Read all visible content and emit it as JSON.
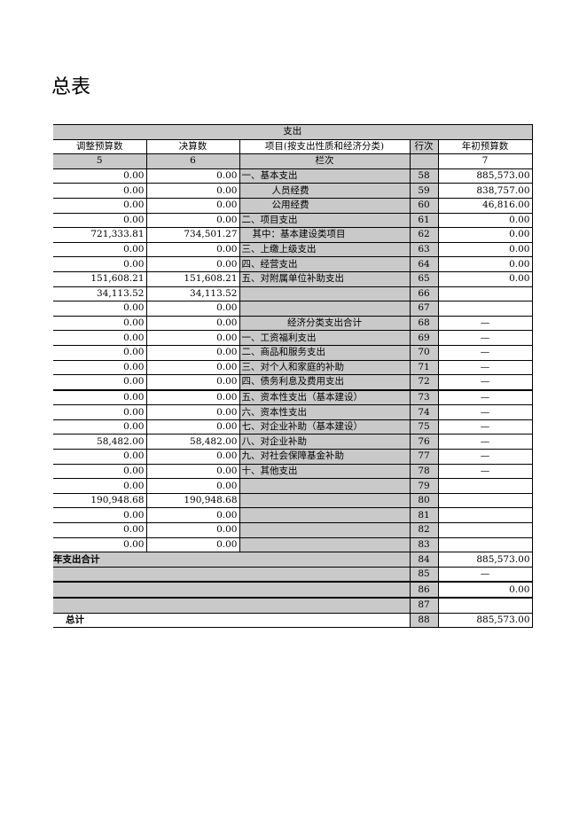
{
  "header": {
    "title": "总表"
  },
  "table": {
    "group_header": "支出",
    "columns": [
      "调整预算数",
      "决算数",
      "项目(按支出性质和经济分类)",
      "行次",
      "年初预算数"
    ],
    "column_numbers": [
      "5",
      "6",
      "栏次",
      null,
      "7"
    ],
    "rows": [
      [
        "0.00",
        "0.00",
        "一、基本支出",
        "58",
        "885,573.00"
      ],
      [
        "0.00",
        "0.00",
        "人员经费",
        "59",
        "838,757.00"
      ],
      [
        "0.00",
        "0.00",
        "公用经费",
        "60",
        "46,816.00"
      ],
      [
        "0.00",
        "0.00",
        "二、项目支出",
        "61",
        "0.00"
      ],
      [
        "721,333.81",
        "734,501.27",
        "其中：基本建设类项目",
        "62",
        "0.00"
      ],
      [
        "0.00",
        "0.00",
        "三、上缴上级支出",
        "63",
        "0.00"
      ],
      [
        "0.00",
        "0.00",
        "四、经营支出",
        "64",
        "0.00"
      ],
      [
        "151,608.21",
        "151,608.21",
        "五、对附属单位补助支出",
        "65",
        "0.00"
      ],
      [
        "34,113.52",
        "34,113.52",
        null,
        "66",
        null
      ],
      [
        "0.00",
        "0.00",
        null,
        "67",
        null
      ],
      [
        "0.00",
        "0.00",
        "经济分类支出合计",
        "68",
        "—"
      ],
      [
        "0.00",
        "0.00",
        "一、工资福利支出",
        "69",
        "—"
      ],
      [
        "0.00",
        "0.00",
        "二、商品和服务支出",
        "70",
        "—"
      ],
      [
        "0.00",
        "0.00",
        "三、对个人和家庭的补助",
        "71",
        "—"
      ],
      [
        "0.00",
        "0.00",
        "四、债务利息及费用支出",
        "72",
        "—"
      ],
      [
        "0.00",
        "0.00",
        "五、资本性支出（基本建设）",
        "73",
        "—"
      ],
      [
        "0.00",
        "0.00",
        "六、资本性支出",
        "74",
        "—"
      ],
      [
        "0.00",
        "0.00",
        "七、对企业补助（基本建设）",
        "75",
        "—"
      ],
      [
        "58,482.00",
        "58,482.00",
        "八、对企业补助",
        "76",
        "—"
      ],
      [
        "0.00",
        "0.00",
        "九、对社会保障基金补助",
        "77",
        "—"
      ],
      [
        "0.00",
        "0.00",
        "十、其他支出",
        "78",
        "—"
      ],
      [
        "0.00",
        "0.00",
        null,
        "79",
        null
      ],
      [
        "190,948.68",
        "190,948.68",
        null,
        "80",
        null
      ],
      [
        "0.00",
        "0.00",
        null,
        "81",
        null
      ],
      [
        "0.00",
        "0.00",
        null,
        "82",
        null
      ],
      [
        "0.00",
        "0.00",
        null,
        "83",
        null
      ]
    ],
    "summary_rows": [
      [
        "年支出合计",
        "84",
        "885,573.00"
      ],
      [
        null,
        "85",
        "—"
      ],
      [
        null,
        "86",
        "0.00"
      ],
      [
        null,
        "87",
        null
      ],
      [
        "总计",
        "88",
        "885,573.00"
      ]
    ]
  }
}
